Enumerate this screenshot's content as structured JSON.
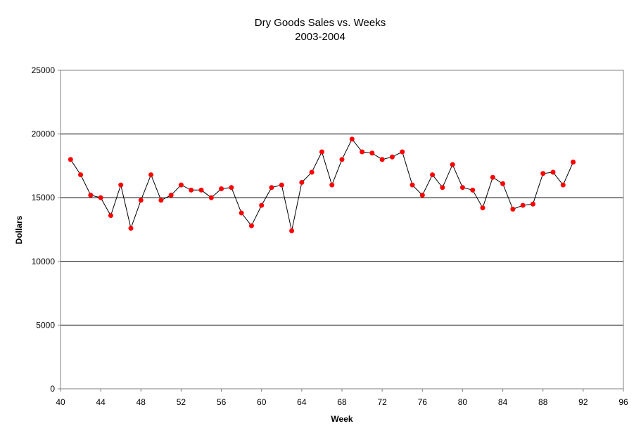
{
  "chart_data": {
    "type": "line",
    "title": "Dry Goods Sales vs. Weeks",
    "subtitle": "2003-2004",
    "xlabel": "Week",
    "ylabel": "Dollars",
    "xlim": [
      40,
      96
    ],
    "ylim": [
      0,
      25000
    ],
    "xticks": [
      40,
      44,
      48,
      52,
      56,
      60,
      64,
      68,
      72,
      76,
      80,
      84,
      88,
      92,
      96
    ],
    "yticks": [
      0,
      5000,
      10000,
      15000,
      20000,
      25000
    ],
    "grid": "horizontal",
    "line_color": "#000000",
    "marker_color": "#ff0000",
    "series": [
      {
        "name": "Dry Goods Sales",
        "x": [
          41,
          42,
          43,
          44,
          45,
          46,
          47,
          48,
          49,
          50,
          51,
          52,
          53,
          54,
          55,
          56,
          57,
          58,
          59,
          60,
          61,
          62,
          63,
          64,
          65,
          66,
          67,
          68,
          69,
          70,
          71,
          72,
          73,
          74,
          75,
          76,
          77,
          78,
          79,
          80,
          81,
          82,
          83,
          84,
          85,
          86,
          87,
          88,
          89,
          90,
          91
        ],
        "y": [
          18000,
          16800,
          15200,
          15000,
          13600,
          16000,
          12600,
          14800,
          16800,
          14800,
          15200,
          16000,
          15600,
          15600,
          15000,
          15700,
          15800,
          13800,
          12800,
          14400,
          15800,
          16000,
          12400,
          16200,
          17000,
          18600,
          16000,
          18000,
          19600,
          18600,
          18500,
          18000,
          18200,
          18600,
          16000,
          15200,
          16800,
          15800,
          17600,
          15800,
          15600,
          14200,
          16600,
          16100,
          14100,
          14400,
          14500,
          16900,
          17000,
          16000,
          17800
        ]
      }
    ]
  }
}
